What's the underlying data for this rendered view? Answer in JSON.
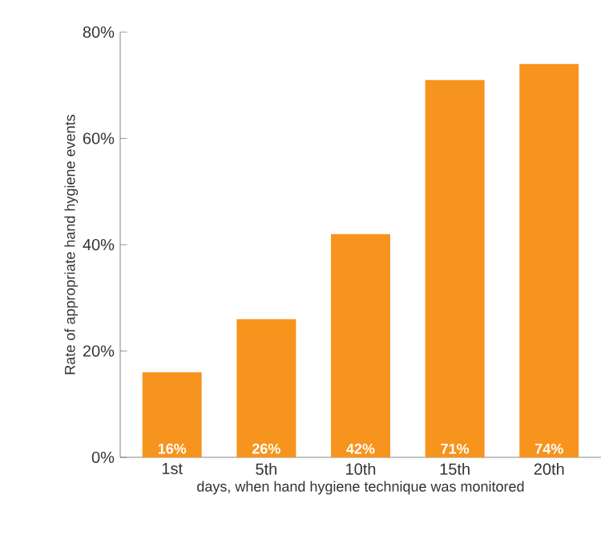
{
  "chart_data": {
    "type": "bar",
    "xlabel": "days, when hand hygiene technique was monitored",
    "ylabel": "Rate of appropriate hand hygiene events",
    "categories": [
      "1st",
      "5th",
      "10th",
      "15th",
      "20th"
    ],
    "values": [
      16,
      26,
      42,
      71,
      74
    ],
    "value_labels": [
      "16%",
      "26%",
      "42%",
      "71%",
      "74%"
    ],
    "color": "#f7941d",
    "ylim": [
      0,
      80
    ],
    "yticks": [
      {
        "value": 0,
        "label": "0%"
      },
      {
        "value": 20,
        "label": "20%"
      },
      {
        "value": 40,
        "label": "40%"
      },
      {
        "value": 60,
        "label": "60%"
      },
      {
        "value": 80,
        "label": "80%"
      }
    ],
    "grid": false
  }
}
